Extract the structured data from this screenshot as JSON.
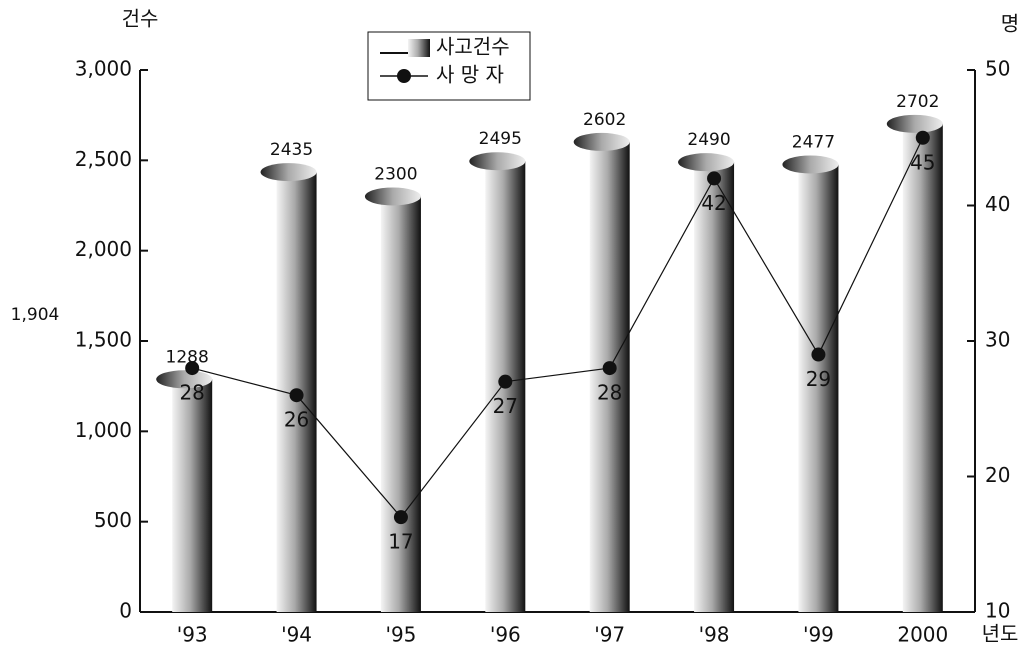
{
  "chart_data": {
    "type": "bar_line",
    "y_axis_label": "건수",
    "y2_axis_label": "명",
    "x_axis_label": "년도",
    "annotation": "1,904",
    "categories": [
      "'93",
      "'94",
      "'95",
      "'96",
      "'97",
      "'98",
      "'99",
      "2000"
    ],
    "series": [
      {
        "name": "사고건수",
        "type": "bar",
        "color": "#333333",
        "values": [
          1288,
          2435,
          2300,
          2495,
          2602,
          2490,
          2477,
          2702
        ]
      },
      {
        "name": "사 망 자",
        "type": "line",
        "axis": "y2",
        "color": "#111111",
        "values": [
          28,
          26,
          17,
          27,
          28,
          42,
          29,
          45
        ]
      }
    ],
    "ylim": [
      0,
      3000
    ],
    "yticks": [
      0,
      500,
      {
        "value": 1000,
        "label": "1,000"
      },
      {
        "value": 1500,
        "label": "1,500"
      },
      {
        "value": 2000,
        "label": "2,000"
      },
      {
        "value": 2500,
        "label": "2,500"
      },
      {
        "value": 3000,
        "label": "3,000"
      }
    ],
    "y2lim": [
      10,
      50
    ],
    "y2ticks": [
      10,
      20,
      30,
      40,
      50
    ]
  }
}
